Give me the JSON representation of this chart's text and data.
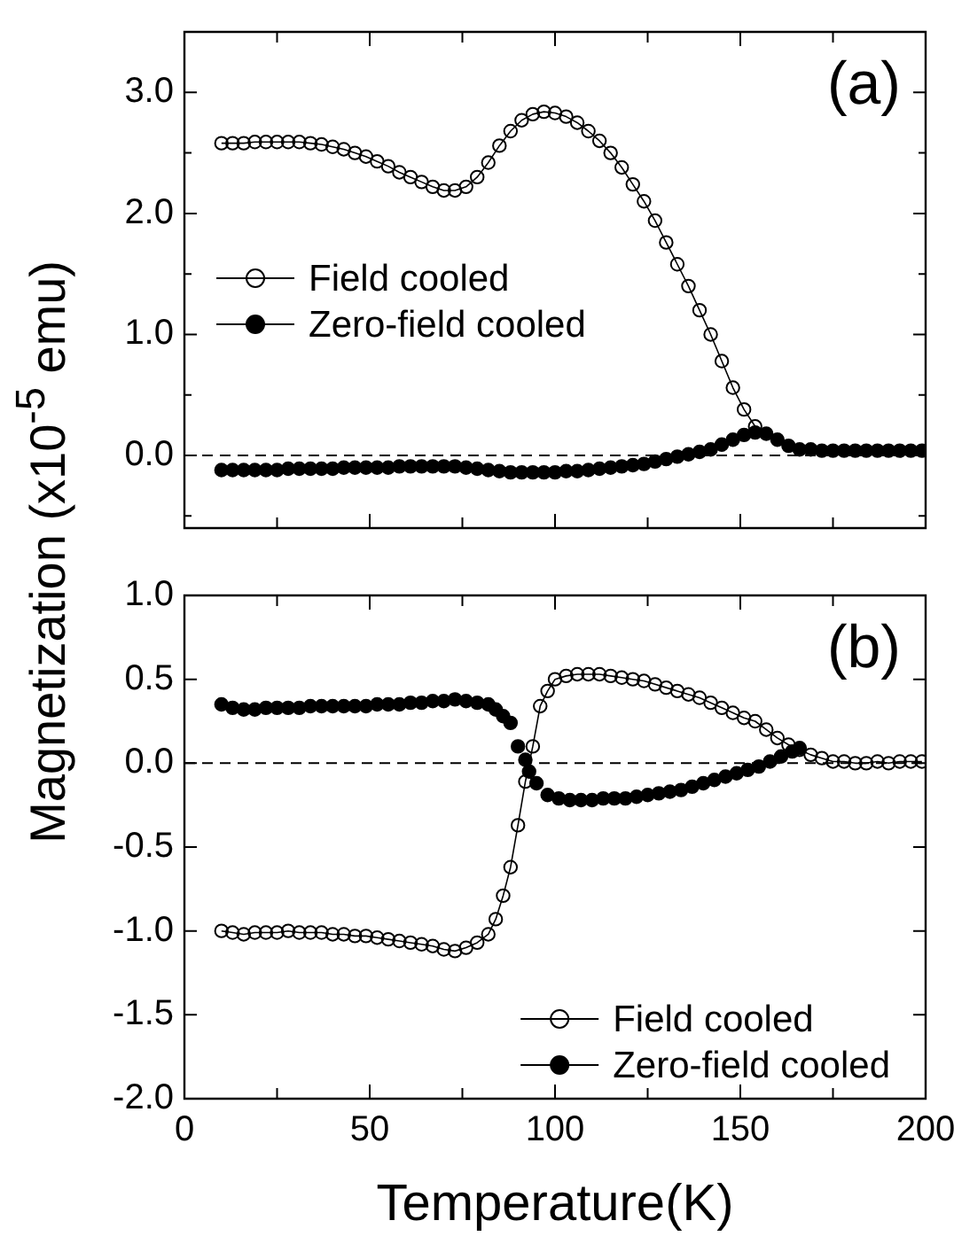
{
  "chart_data": [
    {
      "type": "line",
      "ylabel": "Magnetization  (x10$^{-5}$ emu)",
      "annotations": [
        "(a)"
      ],
      "xlim": [
        0,
        200
      ],
      "ylim": [
        -0.6,
        3.5
      ],
      "xticks": [
        0,
        {
          "value": 25,
          "label": null
        },
        50,
        {
          "value": 75,
          "label": null
        },
        100,
        {
          "value": 125,
          "label": null
        },
        150,
        {
          "value": 175,
          "label": null
        },
        200
      ],
      "yticks": [
        {
          "value": -0.5,
          "label": null
        },
        {
          "value": 0,
          "label": "0.0"
        },
        {
          "value": 0.5,
          "label": null
        },
        {
          "value": 1,
          "label": "1.0"
        },
        {
          "value": 1.5,
          "label": null
        },
        {
          "value": 2,
          "label": "2.0"
        },
        {
          "value": 2.5,
          "label": null
        },
        {
          "value": 3,
          "label": "3.0"
        }
      ],
      "tick_labels": "y",
      "grid": false,
      "legend": "left",
      "marker": "circle",
      "line_style": "solid",
      "ref_lines": [
        {
          "axis": "y",
          "value": 0,
          "line_style": "dashed",
          "color": "#000000"
        }
      ],
      "series": [
        {
          "name": "Field cooled",
          "color": "#000000",
          "x": [
            10,
            13,
            16,
            19,
            22,
            25,
            28,
            31,
            34,
            37,
            40,
            43,
            46,
            49,
            52,
            55,
            58,
            61,
            64,
            67,
            70,
            73,
            76,
            79,
            82,
            85,
            88,
            91,
            94,
            97,
            100,
            103,
            106,
            109,
            112,
            115,
            118,
            121,
            124,
            127,
            130,
            133,
            136,
            139,
            142,
            145,
            148,
            151,
            154
          ],
          "values": [
            2.58,
            2.58,
            2.58,
            2.59,
            2.59,
            2.59,
            2.59,
            2.59,
            2.58,
            2.57,
            2.55,
            2.53,
            2.5,
            2.47,
            2.43,
            2.39,
            2.34,
            2.3,
            2.26,
            2.22,
            2.19,
            2.19,
            2.22,
            2.3,
            2.42,
            2.56,
            2.68,
            2.77,
            2.82,
            2.84,
            2.83,
            2.8,
            2.75,
            2.68,
            2.6,
            2.5,
            2.38,
            2.24,
            2.1,
            1.94,
            1.76,
            1.58,
            1.4,
            1.2,
            1.0,
            0.78,
            0.56,
            0.38,
            0.24
          ]
        },
        {
          "name": "Zero-field cooled",
          "type": "scatter",
          "color": "#000000",
          "x": [
            10,
            13,
            16,
            19,
            22,
            25,
            28,
            31,
            34,
            37,
            40,
            43,
            46,
            49,
            52,
            55,
            58,
            61,
            64,
            67,
            70,
            73,
            76,
            79,
            82,
            85,
            88,
            91,
            94,
            97,
            100,
            103,
            106,
            109,
            112,
            115,
            118,
            121,
            124,
            127,
            130,
            133,
            136,
            139,
            142,
            145,
            148,
            151,
            154,
            157,
            160,
            163,
            166,
            169,
            172,
            175,
            178,
            181,
            184,
            187,
            190,
            193,
            196,
            199
          ],
          "values": [
            -0.12,
            -0.12,
            -0.12,
            -0.12,
            -0.12,
            -0.12,
            -0.11,
            -0.11,
            -0.11,
            -0.11,
            -0.11,
            -0.1,
            -0.1,
            -0.1,
            -0.1,
            -0.1,
            -0.09,
            -0.09,
            -0.09,
            -0.09,
            -0.09,
            -0.09,
            -0.1,
            -0.11,
            -0.12,
            -0.13,
            -0.14,
            -0.14,
            -0.14,
            -0.14,
            -0.14,
            -0.13,
            -0.13,
            -0.12,
            -0.11,
            -0.1,
            -0.09,
            -0.08,
            -0.07,
            -0.05,
            -0.03,
            -0.01,
            0.01,
            0.03,
            0.05,
            0.09,
            0.13,
            0.17,
            0.19,
            0.18,
            0.13,
            0.08,
            0.05,
            0.05,
            0.04,
            0.04,
            0.04,
            0.04,
            0.04,
            0.04,
            0.04,
            0.04,
            0.04,
            0.04
          ]
        }
      ]
    },
    {
      "type": "line",
      "xlabel": "Temperature(K)",
      "annotations": [
        "(b)"
      ],
      "xlim": [
        0,
        200
      ],
      "ylim": [
        -2,
        1
      ],
      "xticks": [
        0,
        {
          "value": 25,
          "label": null
        },
        50,
        {
          "value": 75,
          "label": null
        },
        100,
        {
          "value": 125,
          "label": null
        },
        150,
        {
          "value": 175,
          "label": null
        },
        200
      ],
      "yticks": [
        {
          "value": -2,
          "label": "-2.0"
        },
        {
          "value": -1.5,
          "label": "-1.5"
        },
        {
          "value": -1,
          "label": "-1.0"
        },
        {
          "value": -0.5,
          "label": "-0.5"
        },
        {
          "value": 0,
          "label": "0.0"
        },
        {
          "value": 0.5,
          "label": "0.5"
        },
        {
          "value": 1,
          "label": "1.0"
        }
      ],
      "grid": false,
      "legend": "bottom right",
      "marker": "circle",
      "line_style": "solid",
      "ref_lines": [
        {
          "axis": "y",
          "value": 0,
          "line_style": "dashed",
          "color": "#000000"
        }
      ],
      "series": [
        {
          "name": "Field cooled",
          "color": "#000000",
          "x": [
            10,
            13,
            16,
            19,
            22,
            25,
            28,
            31,
            34,
            37,
            40,
            43,
            46,
            49,
            52,
            55,
            58,
            61,
            64,
            67,
            70,
            73,
            76,
            79,
            82,
            84,
            86,
            88,
            90,
            92,
            94,
            96,
            98,
            100,
            103,
            106,
            109,
            112,
            115,
            118,
            121,
            124,
            127,
            130,
            133,
            136,
            139,
            142,
            145,
            148,
            151,
            154,
            157,
            160,
            163,
            166,
            169,
            172,
            175,
            178,
            181,
            184,
            187,
            190,
            193,
            196,
            199
          ],
          "values": [
            -1.0,
            -1.01,
            -1.02,
            -1.01,
            -1.01,
            -1.01,
            -1.0,
            -1.01,
            -1.01,
            -1.01,
            -1.02,
            -1.02,
            -1.03,
            -1.03,
            -1.04,
            -1.05,
            -1.06,
            -1.07,
            -1.08,
            -1.09,
            -1.11,
            -1.12,
            -1.1,
            -1.07,
            -1.02,
            -0.93,
            -0.79,
            -0.62,
            -0.37,
            -0.11,
            0.1,
            0.34,
            0.43,
            0.5,
            0.52,
            0.53,
            0.53,
            0.53,
            0.52,
            0.51,
            0.5,
            0.49,
            0.47,
            0.45,
            0.43,
            0.41,
            0.39,
            0.36,
            0.33,
            0.3,
            0.27,
            0.25,
            0.2,
            0.15,
            0.11,
            0.08,
            0.05,
            0.03,
            0.01,
            0.01,
            0.0,
            0.0,
            0.01,
            0.0,
            0.01,
            0.01,
            0.01
          ]
        },
        {
          "name": "Zero-field cooled",
          "type": "scatter",
          "color": "#000000",
          "x": [
            10,
            13,
            16,
            19,
            22,
            25,
            28,
            31,
            34,
            37,
            40,
            43,
            46,
            49,
            52,
            55,
            58,
            61,
            64,
            67,
            70,
            73,
            76,
            79,
            82,
            84,
            86,
            88,
            90,
            92,
            93,
            95,
            98,
            101,
            104,
            107,
            110,
            113,
            116,
            119,
            122,
            125,
            128,
            131,
            134,
            137,
            140,
            143,
            146,
            149,
            152,
            155,
            158,
            161,
            164,
            166
          ],
          "values": [
            0.35,
            0.33,
            0.32,
            0.32,
            0.33,
            0.33,
            0.33,
            0.33,
            0.34,
            0.34,
            0.34,
            0.34,
            0.34,
            0.34,
            0.35,
            0.35,
            0.35,
            0.36,
            0.36,
            0.37,
            0.37,
            0.38,
            0.37,
            0.36,
            0.35,
            0.32,
            0.28,
            0.24,
            0.1,
            0.02,
            -0.05,
            -0.12,
            -0.19,
            -0.21,
            -0.22,
            -0.22,
            -0.22,
            -0.21,
            -0.21,
            -0.21,
            -0.2,
            -0.19,
            -0.18,
            -0.17,
            -0.16,
            -0.14,
            -0.12,
            -0.1,
            -0.08,
            -0.06,
            -0.04,
            -0.02,
            0.01,
            0.04,
            0.07,
            0.09
          ]
        }
      ]
    }
  ]
}
